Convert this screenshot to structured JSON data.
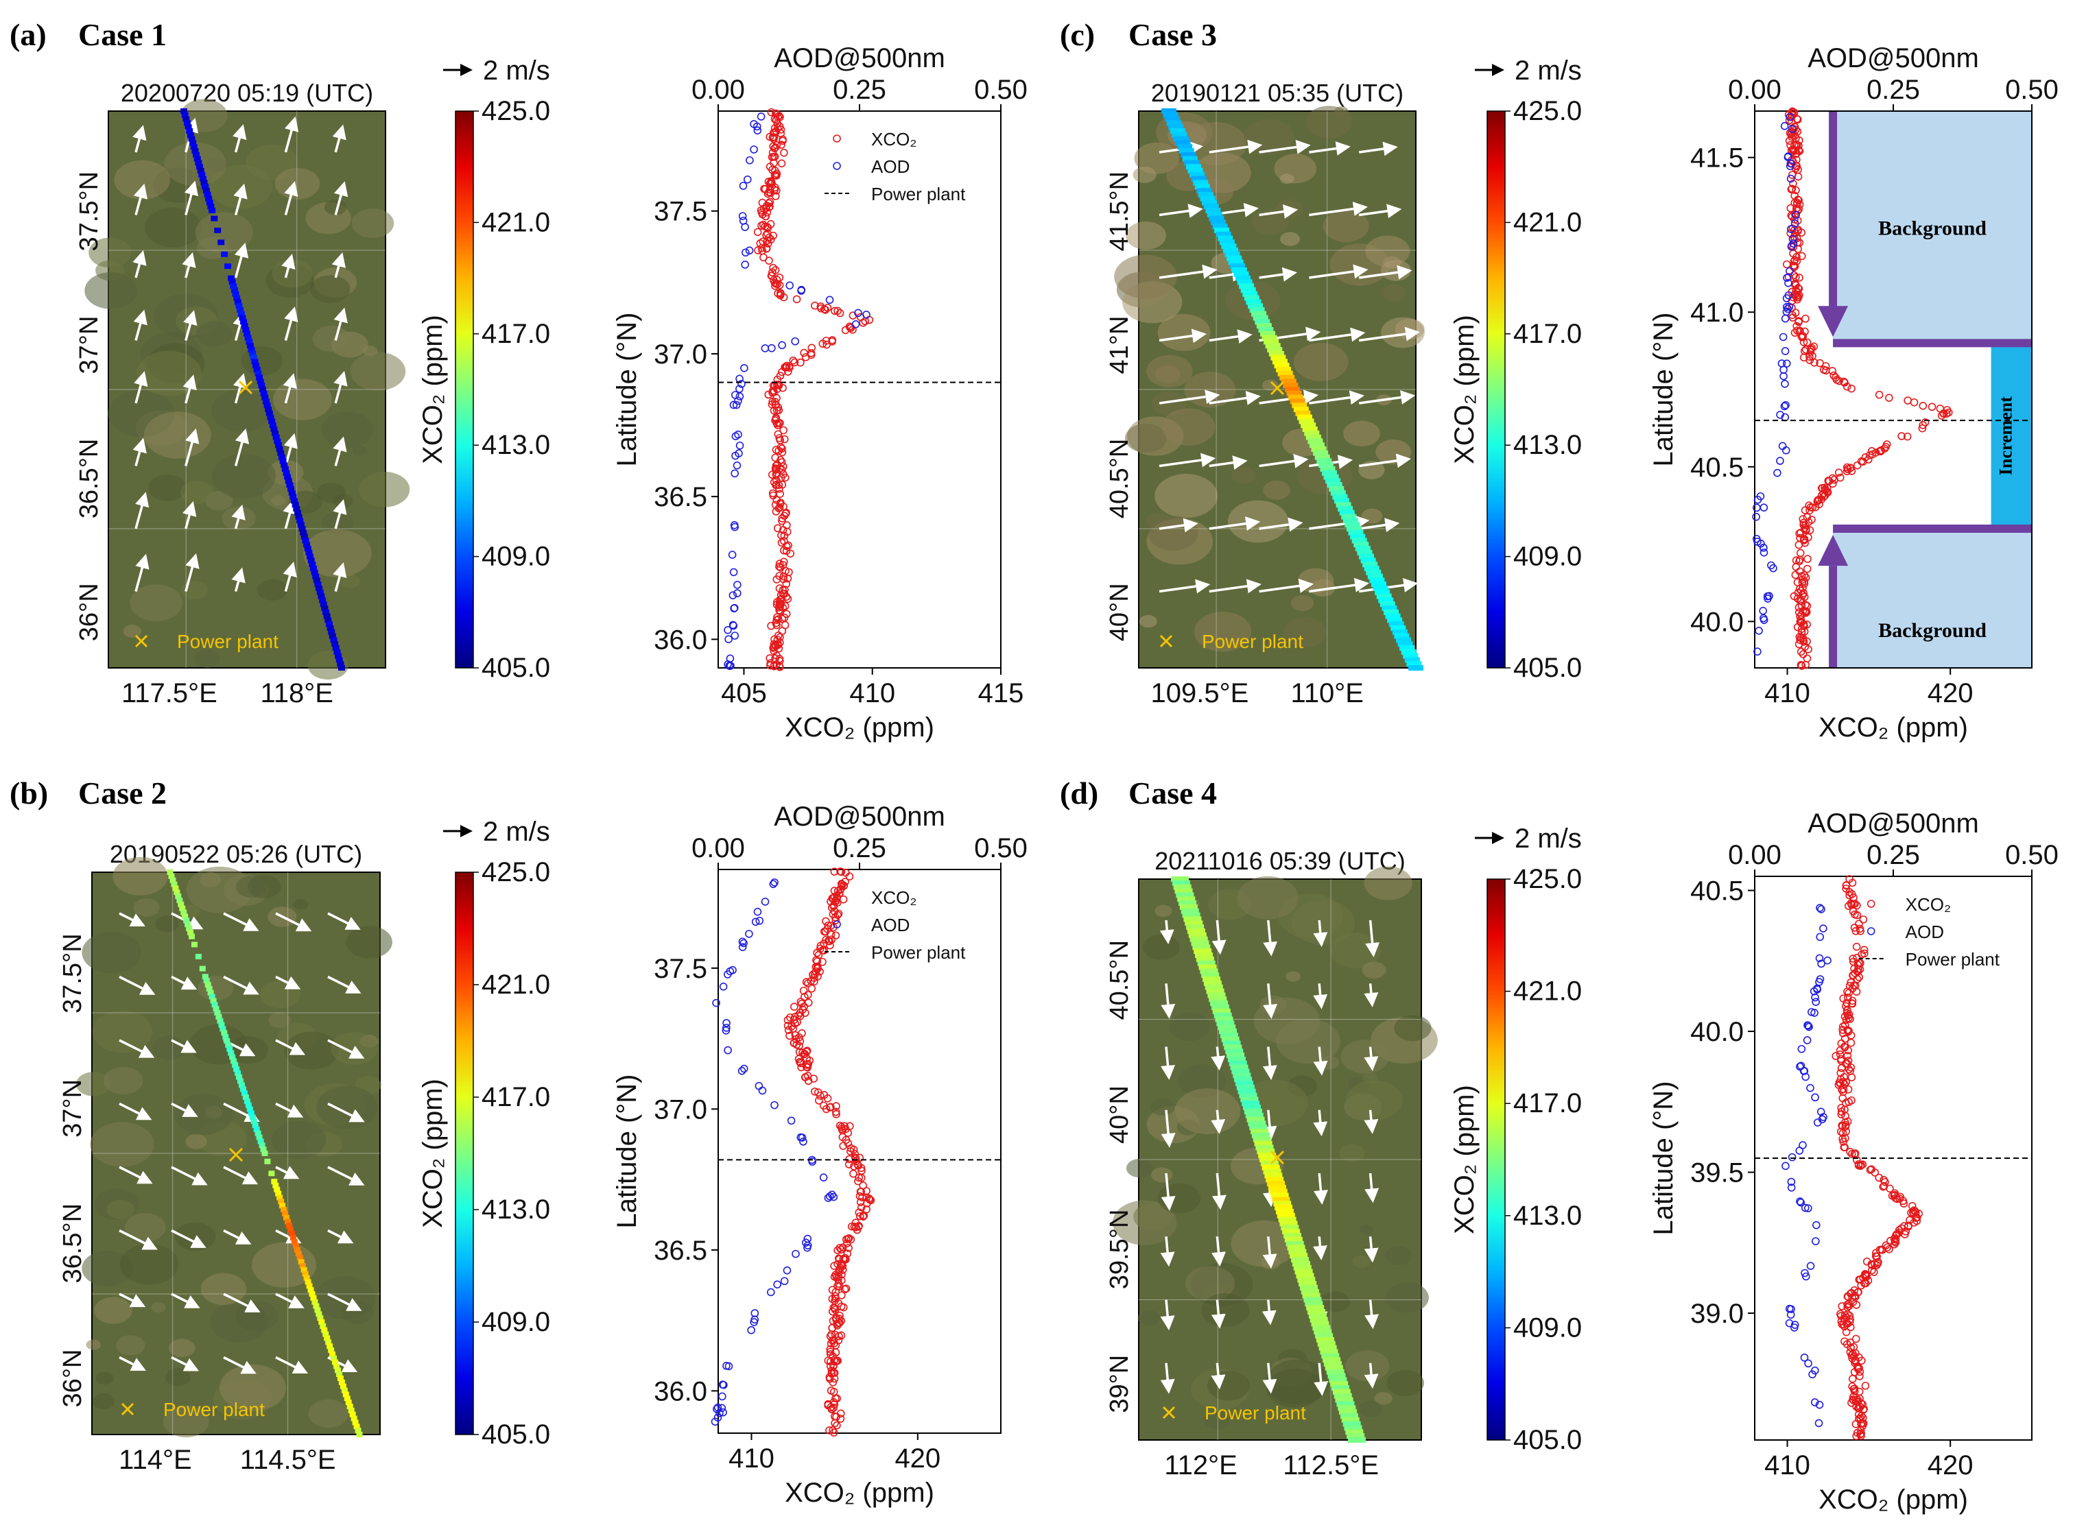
{
  "colors": {
    "xco2_marker": "#e41a1c",
    "aod_marker": "#1f1fe0",
    "arrow": "#ffffff",
    "plant_marker": "#f5c400",
    "background_box": "#bcd8ef",
    "increment_box": "#1eb4ea",
    "bracket": "#6e3fa0"
  },
  "colorbar": {
    "ticks": [
      "425.0",
      "421.0",
      "417.0",
      "413.0",
      "409.0",
      "405.0"
    ],
    "label": "XCO₂ (ppm)",
    "vector_key": "2 m/s",
    "range": [
      405,
      425
    ]
  },
  "maps": [
    {
      "panel": "(a)",
      "case": "Case 1",
      "timestamp": "20200720 05:19 (UTC)",
      "lat_ticks": [
        "37.5°N",
        "37°N",
        "36.5°N",
        "36°N"
      ],
      "lon_ticks": [
        "117.5°E",
        "118°E"
      ],
      "plant_label": "Power plant",
      "arrow_dir": "up"
    },
    {
      "panel": "(b)",
      "case": "Case 2",
      "timestamp": "20190522 05:26 (UTC)",
      "lat_ticks": [
        "37.5°N",
        "37°N",
        "36.5°N",
        "36°N"
      ],
      "lon_ticks": [
        "114°E",
        "114.5°E"
      ],
      "plant_label": "Power plant",
      "arrow_dir": "down-right"
    },
    {
      "panel": "(c)",
      "case": "Case 3",
      "timestamp": "20190121 05:35 (UTC)",
      "lat_ticks": [
        "41.5°N",
        "41°N",
        "40.5°N",
        "40°N"
      ],
      "lon_ticks": [
        "109.5°E",
        "110°E"
      ],
      "plant_label": "Power plant",
      "arrow_dir": "right"
    },
    {
      "panel": "(d)",
      "case": "Case 4",
      "timestamp": "20211016 05:39 (UTC)",
      "lat_ticks": [
        "40.5°N",
        "40°N",
        "39.5°N",
        "39°N"
      ],
      "lon_ticks": [
        "112°E",
        "112.5°E"
      ],
      "plant_label": "Power plant",
      "arrow_dir": "down"
    }
  ],
  "chart_data": [
    {
      "type": "scatter",
      "panel": "(a)",
      "title": "AOD@500nm",
      "xlabel": "XCO₂ (ppm)",
      "ylabel": "Latitude (°N)",
      "xlim": [
        404,
        415
      ],
      "ylim": [
        35.9,
        37.85
      ],
      "top_xlim": [
        0,
        0.5
      ],
      "x_ticks": [
        "405",
        "410",
        "415"
      ],
      "y_ticks": [
        "36.0",
        "36.5",
        "37.0",
        "37.5"
      ],
      "top_ticks": [
        "0.00",
        "0.25",
        "0.50"
      ],
      "power_plant_lat": 36.9,
      "legend": [
        "XCO₂",
        "AOD",
        "Power plant"
      ],
      "xco2_profile": [
        [
          35.95,
          406.2
        ],
        [
          36.1,
          406.4
        ],
        [
          36.3,
          406.6
        ],
        [
          36.5,
          406.3
        ],
        [
          36.7,
          406.4
        ],
        [
          36.85,
          406.1
        ],
        [
          36.95,
          406.6
        ],
        [
          37.05,
          408.4
        ],
        [
          37.12,
          409.8
        ],
        [
          37.2,
          406.5
        ],
        [
          37.35,
          405.8
        ],
        [
          37.5,
          405.9
        ],
        [
          37.65,
          406.2
        ],
        [
          37.8,
          406.3
        ]
      ],
      "aod_profile": [
        [
          35.95,
          0.02
        ],
        [
          36.2,
          0.03
        ],
        [
          36.5,
          0.03
        ],
        [
          36.8,
          0.03
        ],
        [
          37.0,
          0.05
        ],
        [
          37.12,
          0.28
        ],
        [
          37.3,
          0.05
        ],
        [
          37.5,
          0.04
        ],
        [
          37.8,
          0.07
        ]
      ]
    },
    {
      "type": "scatter",
      "panel": "(b)",
      "title": "AOD@500nm",
      "xlabel": "XCO₂ (ppm)",
      "ylabel": "Latitude (°N)",
      "xlim": [
        408,
        425
      ],
      "ylim": [
        35.85,
        37.85
      ],
      "top_xlim": [
        0,
        0.5
      ],
      "x_ticks": [
        "410",
        "420"
      ],
      "y_ticks": [
        "36.0",
        "36.5",
        "37.0",
        "37.5"
      ],
      "top_ticks": [
        "0.00",
        "0.25",
        "0.50"
      ],
      "power_plant_lat": 36.82,
      "legend": [
        "XCO₂",
        "AOD",
        "Power plant"
      ],
      "xco2_profile": [
        [
          35.9,
          415.0
        ],
        [
          36.1,
          414.8
        ],
        [
          36.3,
          415.2
        ],
        [
          36.5,
          415.5
        ],
        [
          36.65,
          417.0
        ],
        [
          36.75,
          416.5
        ],
        [
          36.95,
          415.5
        ],
        [
          37.1,
          413.5
        ],
        [
          37.3,
          412.5
        ],
        [
          37.5,
          414.0
        ],
        [
          37.7,
          415.0
        ],
        [
          37.85,
          415.5
        ]
      ],
      "aod_profile": [
        [
          35.9,
          0.0
        ],
        [
          36.1,
          0.02
        ],
        [
          36.3,
          0.08
        ],
        [
          36.5,
          0.15
        ],
        [
          36.7,
          0.2
        ],
        [
          36.9,
          0.15
        ],
        [
          37.2,
          0.02
        ],
        [
          37.4,
          0.0
        ],
        [
          37.8,
          0.1
        ]
      ]
    },
    {
      "type": "scatter",
      "panel": "(c)",
      "title": "AOD@500nm",
      "xlabel": "XCO₂ (ppm)",
      "ylabel": "Latitude (°N)",
      "xlim": [
        408,
        425
      ],
      "ylim": [
        39.85,
        41.65
      ],
      "top_xlim": [
        0,
        0.5
      ],
      "x_ticks": [
        "410",
        "420"
      ],
      "y_ticks": [
        "40.0",
        "40.5",
        "41.0",
        "41.5"
      ],
      "top_ticks": [
        "0.00",
        "0.25",
        "0.50"
      ],
      "power_plant_lat": 40.65,
      "legend": [],
      "background_label": "Background",
      "increment_label": "Increment",
      "background_top": [
        40.9,
        41.65
      ],
      "background_bottom": [
        39.85,
        40.3
      ],
      "increment_range": [
        40.3,
        40.9
      ],
      "xco2_profile": [
        [
          39.9,
          411.0
        ],
        [
          40.1,
          410.8
        ],
        [
          40.3,
          411.0
        ],
        [
          40.45,
          412.5
        ],
        [
          40.55,
          415.5
        ],
        [
          40.62,
          418.0
        ],
        [
          40.68,
          420.0
        ],
        [
          40.75,
          414.0
        ],
        [
          40.85,
          411.5
        ],
        [
          41.0,
          410.5
        ],
        [
          41.2,
          410.5
        ],
        [
          41.4,
          410.5
        ],
        [
          41.6,
          410.4
        ]
      ],
      "aod_profile": [
        [
          39.9,
          0.0
        ],
        [
          40.15,
          0.03
        ],
        [
          40.35,
          0.0
        ],
        [
          40.55,
          0.06
        ],
        [
          40.8,
          0.05
        ],
        [
          40.9,
          0.05
        ],
        [
          41.3,
          0.07
        ],
        [
          41.6,
          0.06
        ]
      ]
    },
    {
      "type": "scatter",
      "panel": "(d)",
      "title": "AOD@500nm",
      "xlabel": "XCO₂ (ppm)",
      "ylabel": "Latitude (°N)",
      "xlim": [
        408,
        425
      ],
      "ylim": [
        38.55,
        40.55
      ],
      "top_xlim": [
        0,
        0.5
      ],
      "x_ticks": [
        "410",
        "420"
      ],
      "y_ticks": [
        "39.0",
        "39.5",
        "40.0",
        "40.5"
      ],
      "top_ticks": [
        "0.00",
        "0.25",
        "0.50"
      ],
      "power_plant_lat": 39.55,
      "legend": [
        "XCO₂",
        "AOD",
        "Power plant"
      ],
      "xco2_profile": [
        [
          38.6,
          414.5
        ],
        [
          38.8,
          414.3
        ],
        [
          39.0,
          413.5
        ],
        [
          39.2,
          415.5
        ],
        [
          39.35,
          418.0
        ],
        [
          39.45,
          416.0
        ],
        [
          39.6,
          413.5
        ],
        [
          39.9,
          413.5
        ],
        [
          40.1,
          413.8
        ],
        [
          40.3,
          414.5
        ],
        [
          40.5,
          413.8
        ]
      ],
      "aod_profile": [
        [
          38.6,
          0.12
        ],
        [
          38.8,
          0.1
        ],
        [
          39.0,
          0.06
        ],
        [
          39.3,
          0.12
        ],
        [
          39.5,
          0.05
        ],
        [
          39.7,
          0.12
        ],
        [
          39.9,
          0.08
        ],
        [
          40.2,
          0.12
        ],
        [
          40.5,
          0.12
        ]
      ]
    }
  ]
}
